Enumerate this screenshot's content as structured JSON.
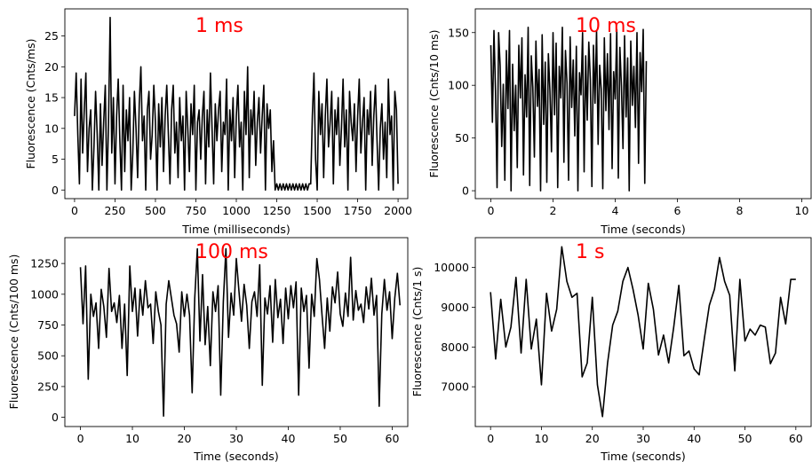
{
  "chart_data": [
    {
      "type": "line",
      "annotation": "1 ms",
      "xlabel": "Time (milliseconds)",
      "ylabel": "Fluorescence (Cnts/ms)",
      "xlim": [
        -60,
        2060
      ],
      "ylim": [
        -1.4,
        29.4
      ],
      "xticks": [
        0,
        250,
        500,
        750,
        1000,
        1250,
        1500,
        1750,
        2000
      ],
      "yticks": [
        0,
        5,
        10,
        15,
        20,
        25
      ],
      "color": "#000000",
      "series": [
        {
          "x_start": 0,
          "x_step": 10,
          "values": [
            12,
            19,
            9,
            1,
            18,
            6,
            13,
            19,
            3,
            10,
            13,
            0,
            7,
            16,
            9,
            0,
            14,
            4,
            11,
            17,
            0,
            11,
            28,
            6,
            15,
            1,
            12,
            18,
            8,
            0,
            17,
            3,
            13,
            8,
            15,
            0,
            6,
            16,
            10,
            2,
            14,
            20,
            8,
            12,
            0,
            13,
            16,
            5,
            9,
            17,
            11,
            0,
            14,
            7,
            15,
            3,
            12,
            17,
            9,
            1,
            13,
            17,
            6,
            11,
            2,
            15,
            8,
            12,
            0,
            16,
            10,
            3,
            14,
            9,
            17,
            0,
            11,
            13,
            5,
            12,
            16,
            1,
            13,
            7,
            19,
            10,
            1,
            14,
            8,
            13,
            16,
            3,
            11,
            9,
            18,
            0,
            13,
            8,
            15,
            2,
            12,
            17,
            7,
            11,
            0,
            16,
            9,
            20,
            2,
            13,
            9,
            16,
            4,
            11,
            15,
            6,
            12,
            17,
            0,
            14,
            10,
            13,
            3,
            8,
            0,
            1,
            0,
            1,
            0,
            1,
            0,
            1,
            0,
            1,
            0,
            1,
            0,
            1,
            0,
            1,
            0,
            1,
            0,
            1,
            0,
            1,
            1,
            12,
            19,
            5,
            0,
            16,
            9,
            14,
            2,
            12,
            18,
            7,
            11,
            16,
            1,
            13,
            9,
            15,
            4,
            10,
            18,
            7,
            13,
            0,
            16,
            11,
            8,
            14,
            3,
            12,
            18,
            6,
            11,
            15,
            0,
            13,
            9,
            16,
            4,
            12,
            17,
            8,
            0,
            10,
            14,
            5,
            11,
            2,
            18,
            9,
            12,
            0,
            16,
            13,
            1
          ]
        }
      ]
    },
    {
      "type": "line",
      "annotation": "10 ms",
      "xlabel": "Time (seconds)",
      "ylabel": "Fluorescence (Cnts/10 ms)",
      "xlim": [
        -0.5,
        10.3
      ],
      "ylim": [
        -7.5,
        172.5
      ],
      "xticks": [
        0,
        2,
        4,
        6,
        8,
        10
      ],
      "yticks": [
        0,
        50,
        100,
        150
      ],
      "color": "#000000",
      "series": [
        {
          "x_start": 0,
          "x_step": 0.05,
          "values": [
            138,
            65,
            152,
            95,
            3,
            150,
            118,
            42,
            101,
            10,
            133,
            78,
            152,
            0,
            120,
            57,
            100,
            22,
            138,
            88,
            145,
            15,
            110,
            70,
            155,
            5,
            128,
            98,
            32,
            142,
            80,
            115,
            0,
            148,
            63,
            122,
            8,
            130,
            95,
            37,
            150,
            72,
            140,
            3,
            118,
            88,
            155,
            27,
            133,
            102,
            10,
            146,
            79,
            124,
            52,
            137,
            0,
            112,
            91,
            150,
            18,
            128,
            67,
            141,
            105,
            4,
            138,
            83,
            152,
            44,
            119,
            96,
            2,
            145,
            76,
            130,
            58,
            149,
            21,
            113,
            87,
            153,
            12,
            136,
            99,
            40,
            147,
            70,
            126,
            0,
            142,
            81,
            118,
            60,
            150,
            26,
            131,
            94,
            153,
            7,
            123
          ]
        }
      ]
    },
    {
      "type": "line",
      "annotation": "100 ms",
      "xlabel": "Time (seconds)",
      "ylabel": "Fluorescence (Cnts/100 ms)",
      "xlim": [
        -3,
        63
      ],
      "ylim": [
        -75,
        1460
      ],
      "xticks": [
        0,
        10,
        20,
        30,
        40,
        50,
        60
      ],
      "yticks": [
        0,
        250,
        500,
        750,
        1000,
        1250
      ],
      "color": "#000000",
      "series": [
        {
          "x_start": 0,
          "x_step": 0.5,
          "values": [
            1220,
            760,
            1230,
            310,
            1000,
            820,
            930,
            560,
            1040,
            900,
            650,
            1210,
            860,
            930,
            770,
            990,
            560,
            920,
            340,
            1230,
            860,
            1050,
            660,
            1040,
            830,
            1110,
            890,
            920,
            600,
            1020,
            860,
            750,
            10,
            920,
            1110,
            970,
            830,
            760,
            530,
            1020,
            820,
            1000,
            830,
            200,
            970,
            1370,
            620,
            1160,
            590,
            900,
            420,
            1020,
            860,
            1070,
            180,
            940,
            1370,
            650,
            1010,
            830,
            1290,
            1030,
            780,
            1080,
            910,
            560,
            940,
            1020,
            820,
            1240,
            260,
            970,
            840,
            1070,
            610,
            1120,
            810,
            960,
            600,
            1050,
            800,
            1070,
            890,
            1100,
            180,
            1050,
            860,
            990,
            400,
            1000,
            820,
            1290,
            1120,
            830,
            560,
            970,
            700,
            1060,
            930,
            1180,
            840,
            740,
            1010,
            820,
            1300,
            790,
            1030,
            870,
            920,
            770,
            1060,
            880,
            1130,
            830,
            990,
            90,
            840,
            1120,
            870,
            1020,
            640,
            970,
            1170,
            910
          ]
        }
      ]
    },
    {
      "type": "line",
      "annotation": "1 s",
      "xlabel": "Time (seconds)",
      "ylabel": "Fluorescence (Cnts/1 s)",
      "xlim": [
        -3,
        63
      ],
      "ylim": [
        6000,
        10750
      ],
      "xticks": [
        0,
        10,
        20,
        30,
        40,
        50,
        60
      ],
      "yticks": [
        7000,
        8000,
        9000,
        10000
      ],
      "color": "#000000",
      "series": [
        {
          "x": [
            0,
            1,
            2,
            3,
            4,
            5,
            6,
            7,
            8,
            9,
            10,
            11,
            12,
            13,
            14,
            15,
            16,
            17,
            18,
            19,
            20,
            21,
            22,
            23,
            24,
            25,
            26,
            27,
            28,
            29,
            30,
            31,
            32,
            33,
            34,
            35,
            36,
            37,
            38,
            39,
            40,
            41,
            42,
            43,
            44,
            45,
            46,
            47,
            48,
            49,
            50,
            51,
            52,
            53,
            54,
            55,
            56,
            57,
            58,
            59,
            60
          ],
          "values": [
            9380,
            7700,
            9200,
            8000,
            8500,
            9750,
            7850,
            9700,
            7950,
            8700,
            7050,
            9350,
            8400,
            8950,
            10520,
            9650,
            9250,
            9350,
            7250,
            7600,
            9250,
            7050,
            6250,
            7600,
            8550,
            8900,
            9650,
            10000,
            9450,
            8800,
            7950,
            9600,
            8950,
            7800,
            8300,
            7600,
            8500,
            9550,
            7780,
            7900,
            7450,
            7300,
            8200,
            9050,
            9450,
            10250,
            9650,
            9300,
            7400,
            9700,
            8150,
            8450,
            8300,
            8550,
            8500,
            7580,
            7850,
            9250,
            8580,
            9700,
            9700
          ]
        }
      ]
    }
  ]
}
